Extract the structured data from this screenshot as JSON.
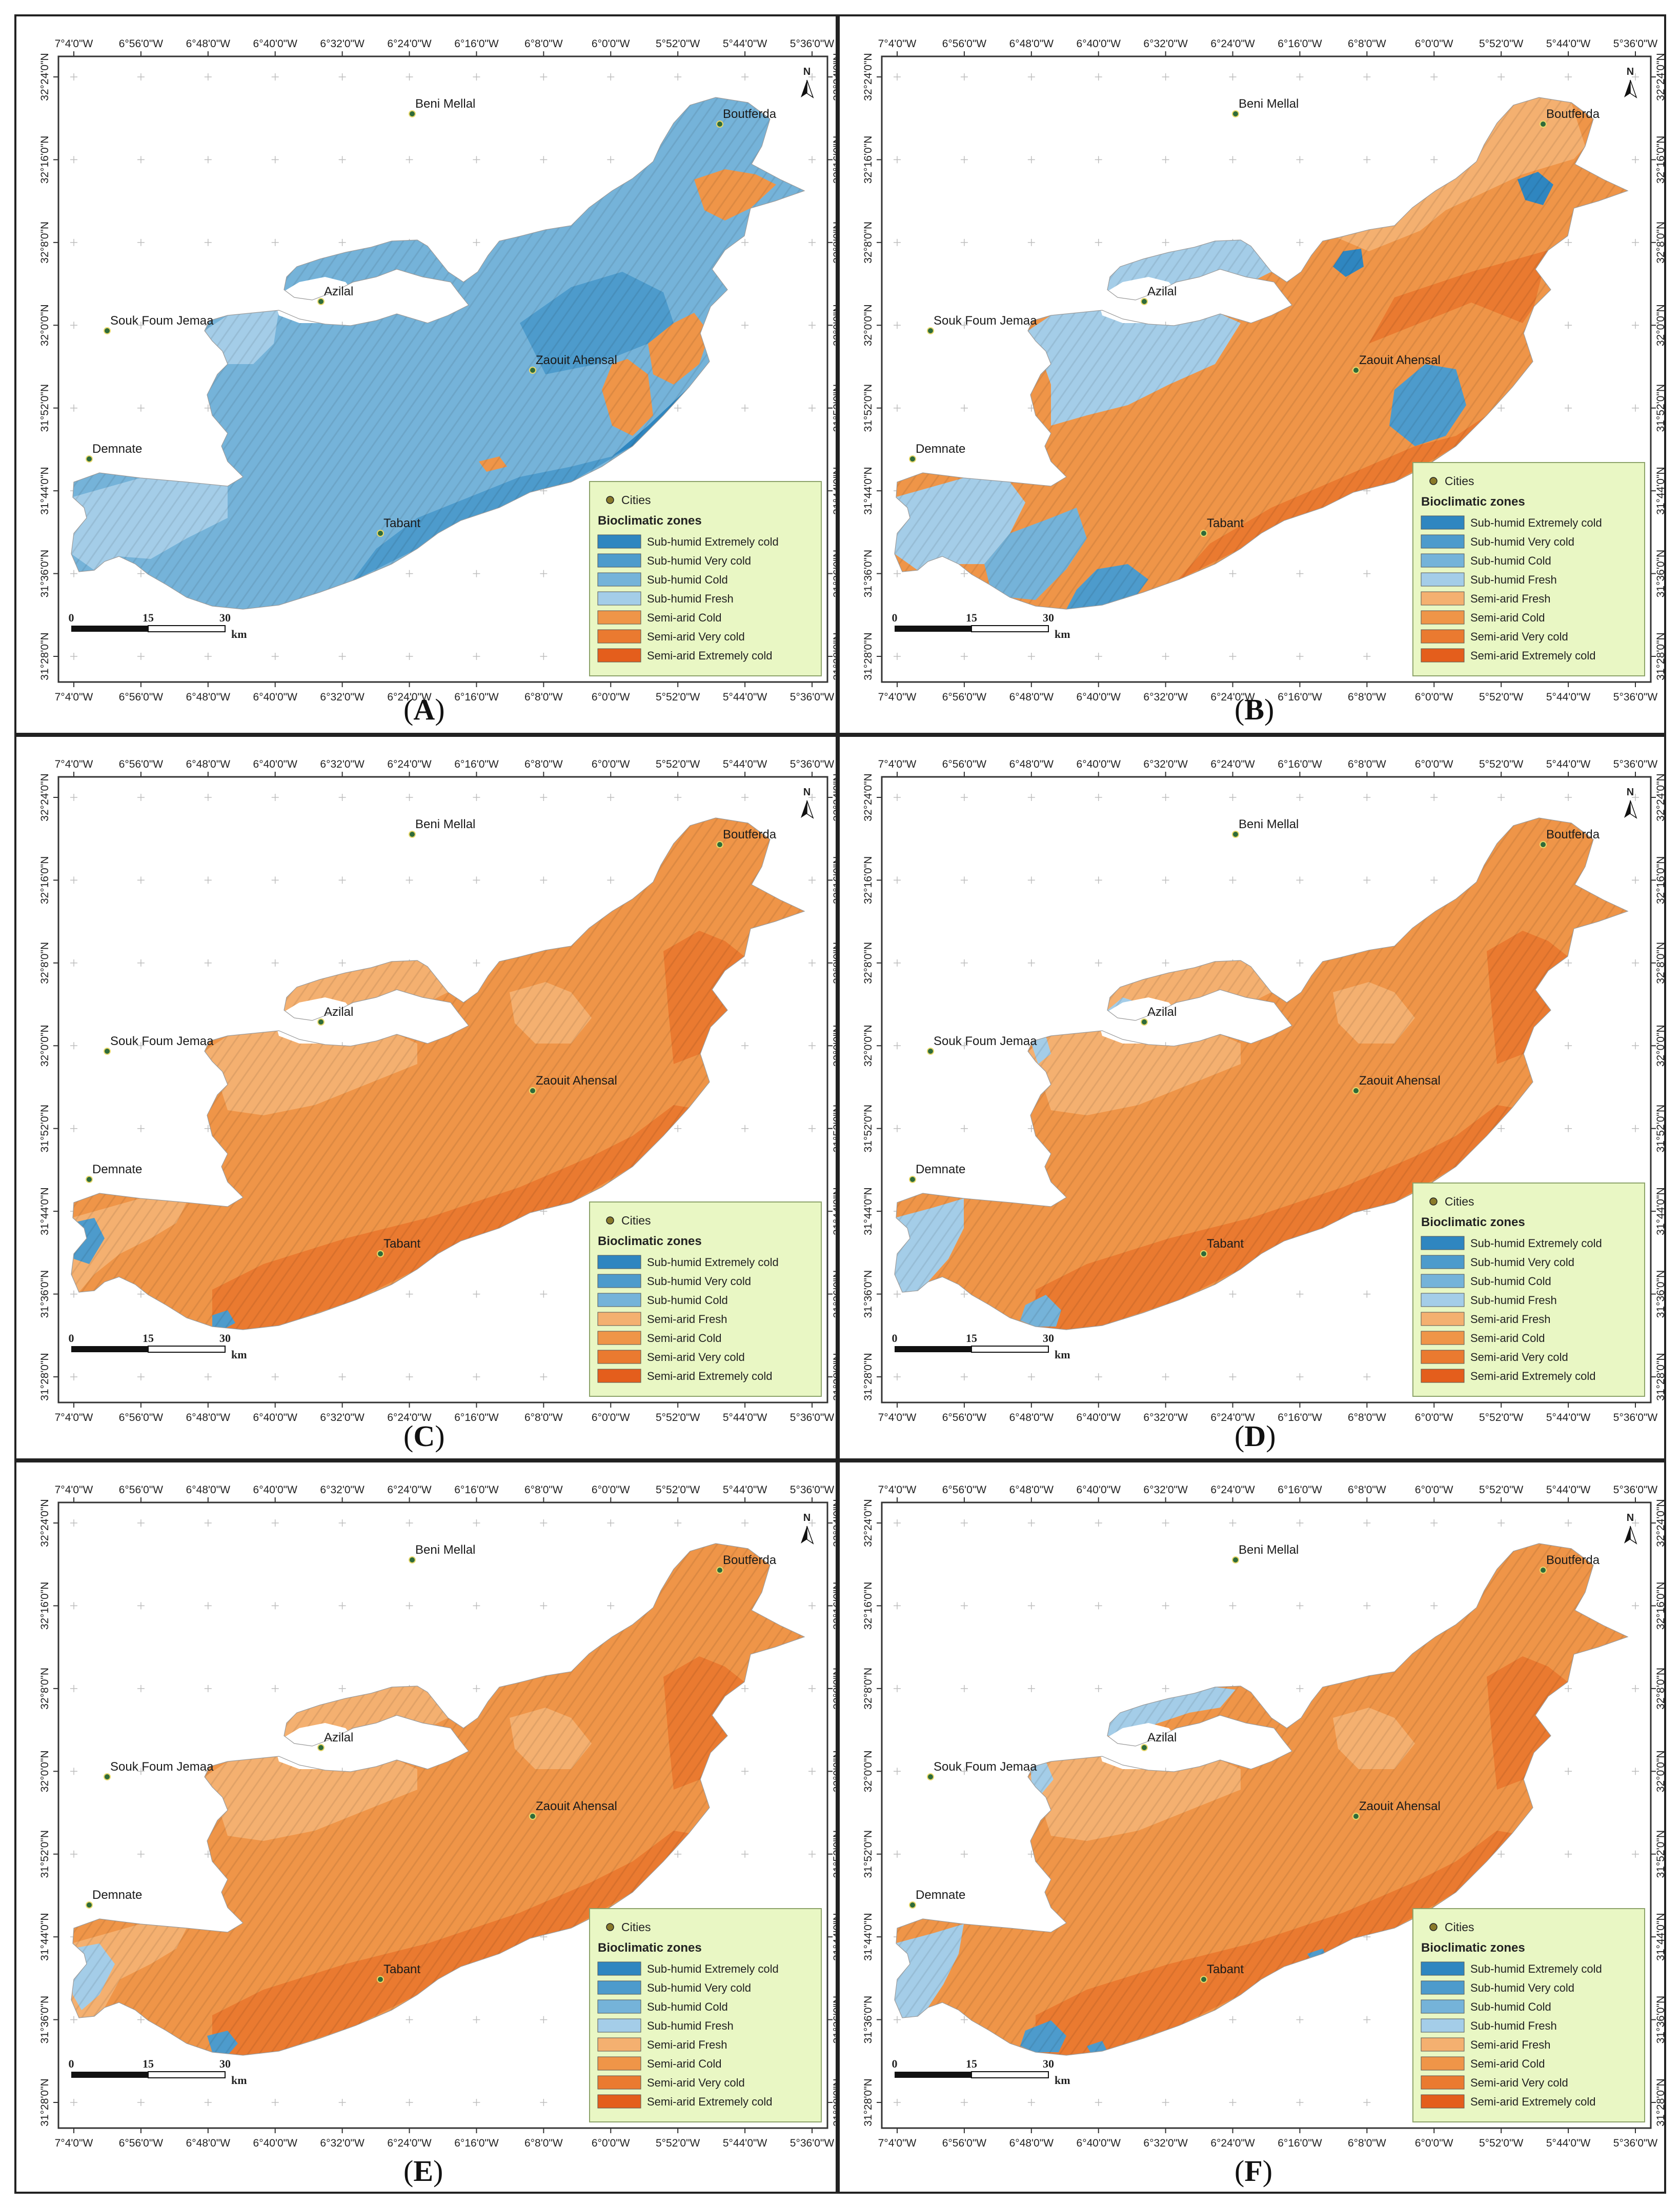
{
  "figure": {
    "panels": [
      {
        "id": "A",
        "label": "A",
        "variant": "A"
      },
      {
        "id": "B",
        "label": "B",
        "variant": "B"
      },
      {
        "id": "C",
        "label": "C",
        "variant": "C"
      },
      {
        "id": "D",
        "label": "D",
        "variant": "D"
      },
      {
        "id": "E",
        "label": "E",
        "variant": "E"
      },
      {
        "id": "F",
        "label": "F",
        "variant": "F"
      }
    ]
  },
  "map": {
    "lon_ticks": [
      "7°4'0\"W",
      "6°56'0\"W",
      "6°48'0\"W",
      "6°40'0\"W",
      "6°32'0\"W",
      "6°24'0\"W",
      "6°16'0\"W",
      "6°8'0\"W",
      "6°0'0\"W",
      "5°52'0\"W",
      "5°44'0\"W",
      "5°36'0\"W"
    ],
    "lat_ticks": [
      "32°24'0\"N",
      "32°16'0\"N",
      "32°8'0\"N",
      "32°0'0\"N",
      "31°52'0\"N",
      "31°44'0\"N",
      "31°36'0\"N",
      "31°28'0\"N"
    ],
    "cities": [
      "Beni Mellal",
      "Boutferda",
      "Azilal",
      "Souk Foum Jemaa",
      "Zaouit Ahensal",
      "Demnate",
      "Tabant"
    ],
    "north_label": "N",
    "scale": {
      "ticks": [
        "0",
        "15",
        "30"
      ],
      "unit": "km"
    }
  },
  "legend": {
    "cities_label": "Cities",
    "title": "Bioclimatic zones",
    "entries": [
      {
        "label": "Sub-humid Extremely cold",
        "color": "#2f86c0"
      },
      {
        "label": "Sub-humid Very cold",
        "color": "#4d9bcc"
      },
      {
        "label": "Sub-humid Cold",
        "color": "#75b3d9"
      },
      {
        "label": "Sub-humid Fresh",
        "color": "#a4cde8"
      },
      {
        "label": "Semi-arid Fresh",
        "color": "#f4b070"
      },
      {
        "label": "Semi-arid Cold",
        "color": "#ef9548"
      },
      {
        "label": "Semi-arid Very cold",
        "color": "#ea7a30"
      },
      {
        "label": "Semi-arid Extremely cold",
        "color": "#e45e1c"
      }
    ],
    "entry_sets": {
      "A": [
        0,
        1,
        2,
        3,
        5,
        6,
        7
      ],
      "B": [
        0,
        1,
        2,
        3,
        4,
        5,
        6,
        7
      ],
      "C": [
        0,
        1,
        2,
        4,
        5,
        6,
        7
      ],
      "D": [
        0,
        1,
        2,
        3,
        4,
        5,
        6,
        7
      ],
      "E": [
        0,
        1,
        2,
        3,
        4,
        5,
        6,
        7
      ],
      "F": [
        0,
        1,
        2,
        3,
        4,
        5,
        6,
        7
      ]
    }
  },
  "colors": {
    "legend_bg": "#e9f7c4",
    "grid_cross": "#bdbdbd",
    "city_dot": "#2e6b3a"
  }
}
